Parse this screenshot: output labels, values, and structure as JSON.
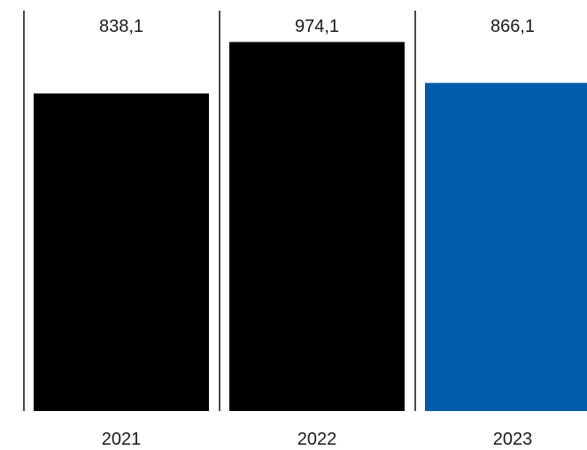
{
  "chart_data": {
    "type": "bar",
    "categories": [
      "2021",
      "2022",
      "2023"
    ],
    "values": [
      838.1,
      974.1,
      866.1
    ],
    "value_labels": [
      "838,1",
      "974,1",
      "866,1"
    ],
    "ylim": [
      0,
      1000
    ],
    "grid": false,
    "bar_colors": [
      "#000000",
      "#000000",
      "#005baa"
    ]
  },
  "colors": {
    "bar_default": "#000000",
    "bar_highlight": "#005baa",
    "separator": "#1a1a1a",
    "text": "#1a1a1a"
  }
}
